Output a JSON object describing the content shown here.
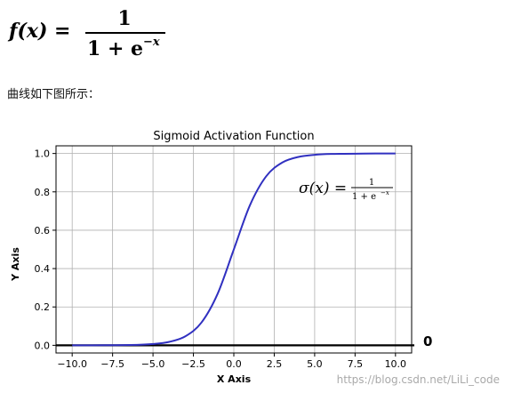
{
  "header": {
    "formula_lhs": "f(x) =",
    "formula_numerator": "1",
    "formula_denominator_base": "1 + e",
    "formula_denominator_exp": "−x"
  },
  "intro_text": "曲线如下图所示：",
  "chart_data": {
    "type": "line",
    "title": "Sigmoid Activation Function",
    "xlabel": "X Axis",
    "ylabel": "Y Axis",
    "xlim": [
      -11,
      11
    ],
    "ylim": [
      -0.04,
      1.04
    ],
    "xticks": [
      "−10.0",
      "−7.5",
      "−5.0",
      "−2.5",
      "0.0",
      "2.5",
      "5.0",
      "7.5",
      "10.0"
    ],
    "xtick_values": [
      -10,
      -7.5,
      -5,
      -2.5,
      0,
      2.5,
      5,
      7.5,
      10
    ],
    "yticks": [
      "0.0",
      "0.2",
      "0.4",
      "0.6",
      "0.8",
      "1.0"
    ],
    "ytick_values": [
      0,
      0.2,
      0.4,
      0.6,
      0.8,
      1.0
    ],
    "grid": true,
    "series": [
      {
        "color": "#3030c0",
        "x": [
          -10,
          -8,
          -6,
          -5,
          -4,
          -3,
          -2,
          -1,
          0,
          1,
          2,
          3,
          4,
          5,
          6,
          8,
          10
        ],
        "y": [
          5e-05,
          0.0003,
          0.0025,
          0.0067,
          0.018,
          0.047,
          0.119,
          0.269,
          0.5,
          0.731,
          0.881,
          0.953,
          0.982,
          0.993,
          0.9975,
          0.9997,
          0.99995
        ]
      }
    ],
    "baseline": {
      "y": 0,
      "color": "#000000"
    },
    "annotation": {
      "lhs": "σ(x) =",
      "numerator": "1",
      "denominator": "1 + e",
      "denominator_exp": "−x"
    },
    "outside_label": "0"
  },
  "watermark": "https://blog.csdn.net/LiLi_code"
}
